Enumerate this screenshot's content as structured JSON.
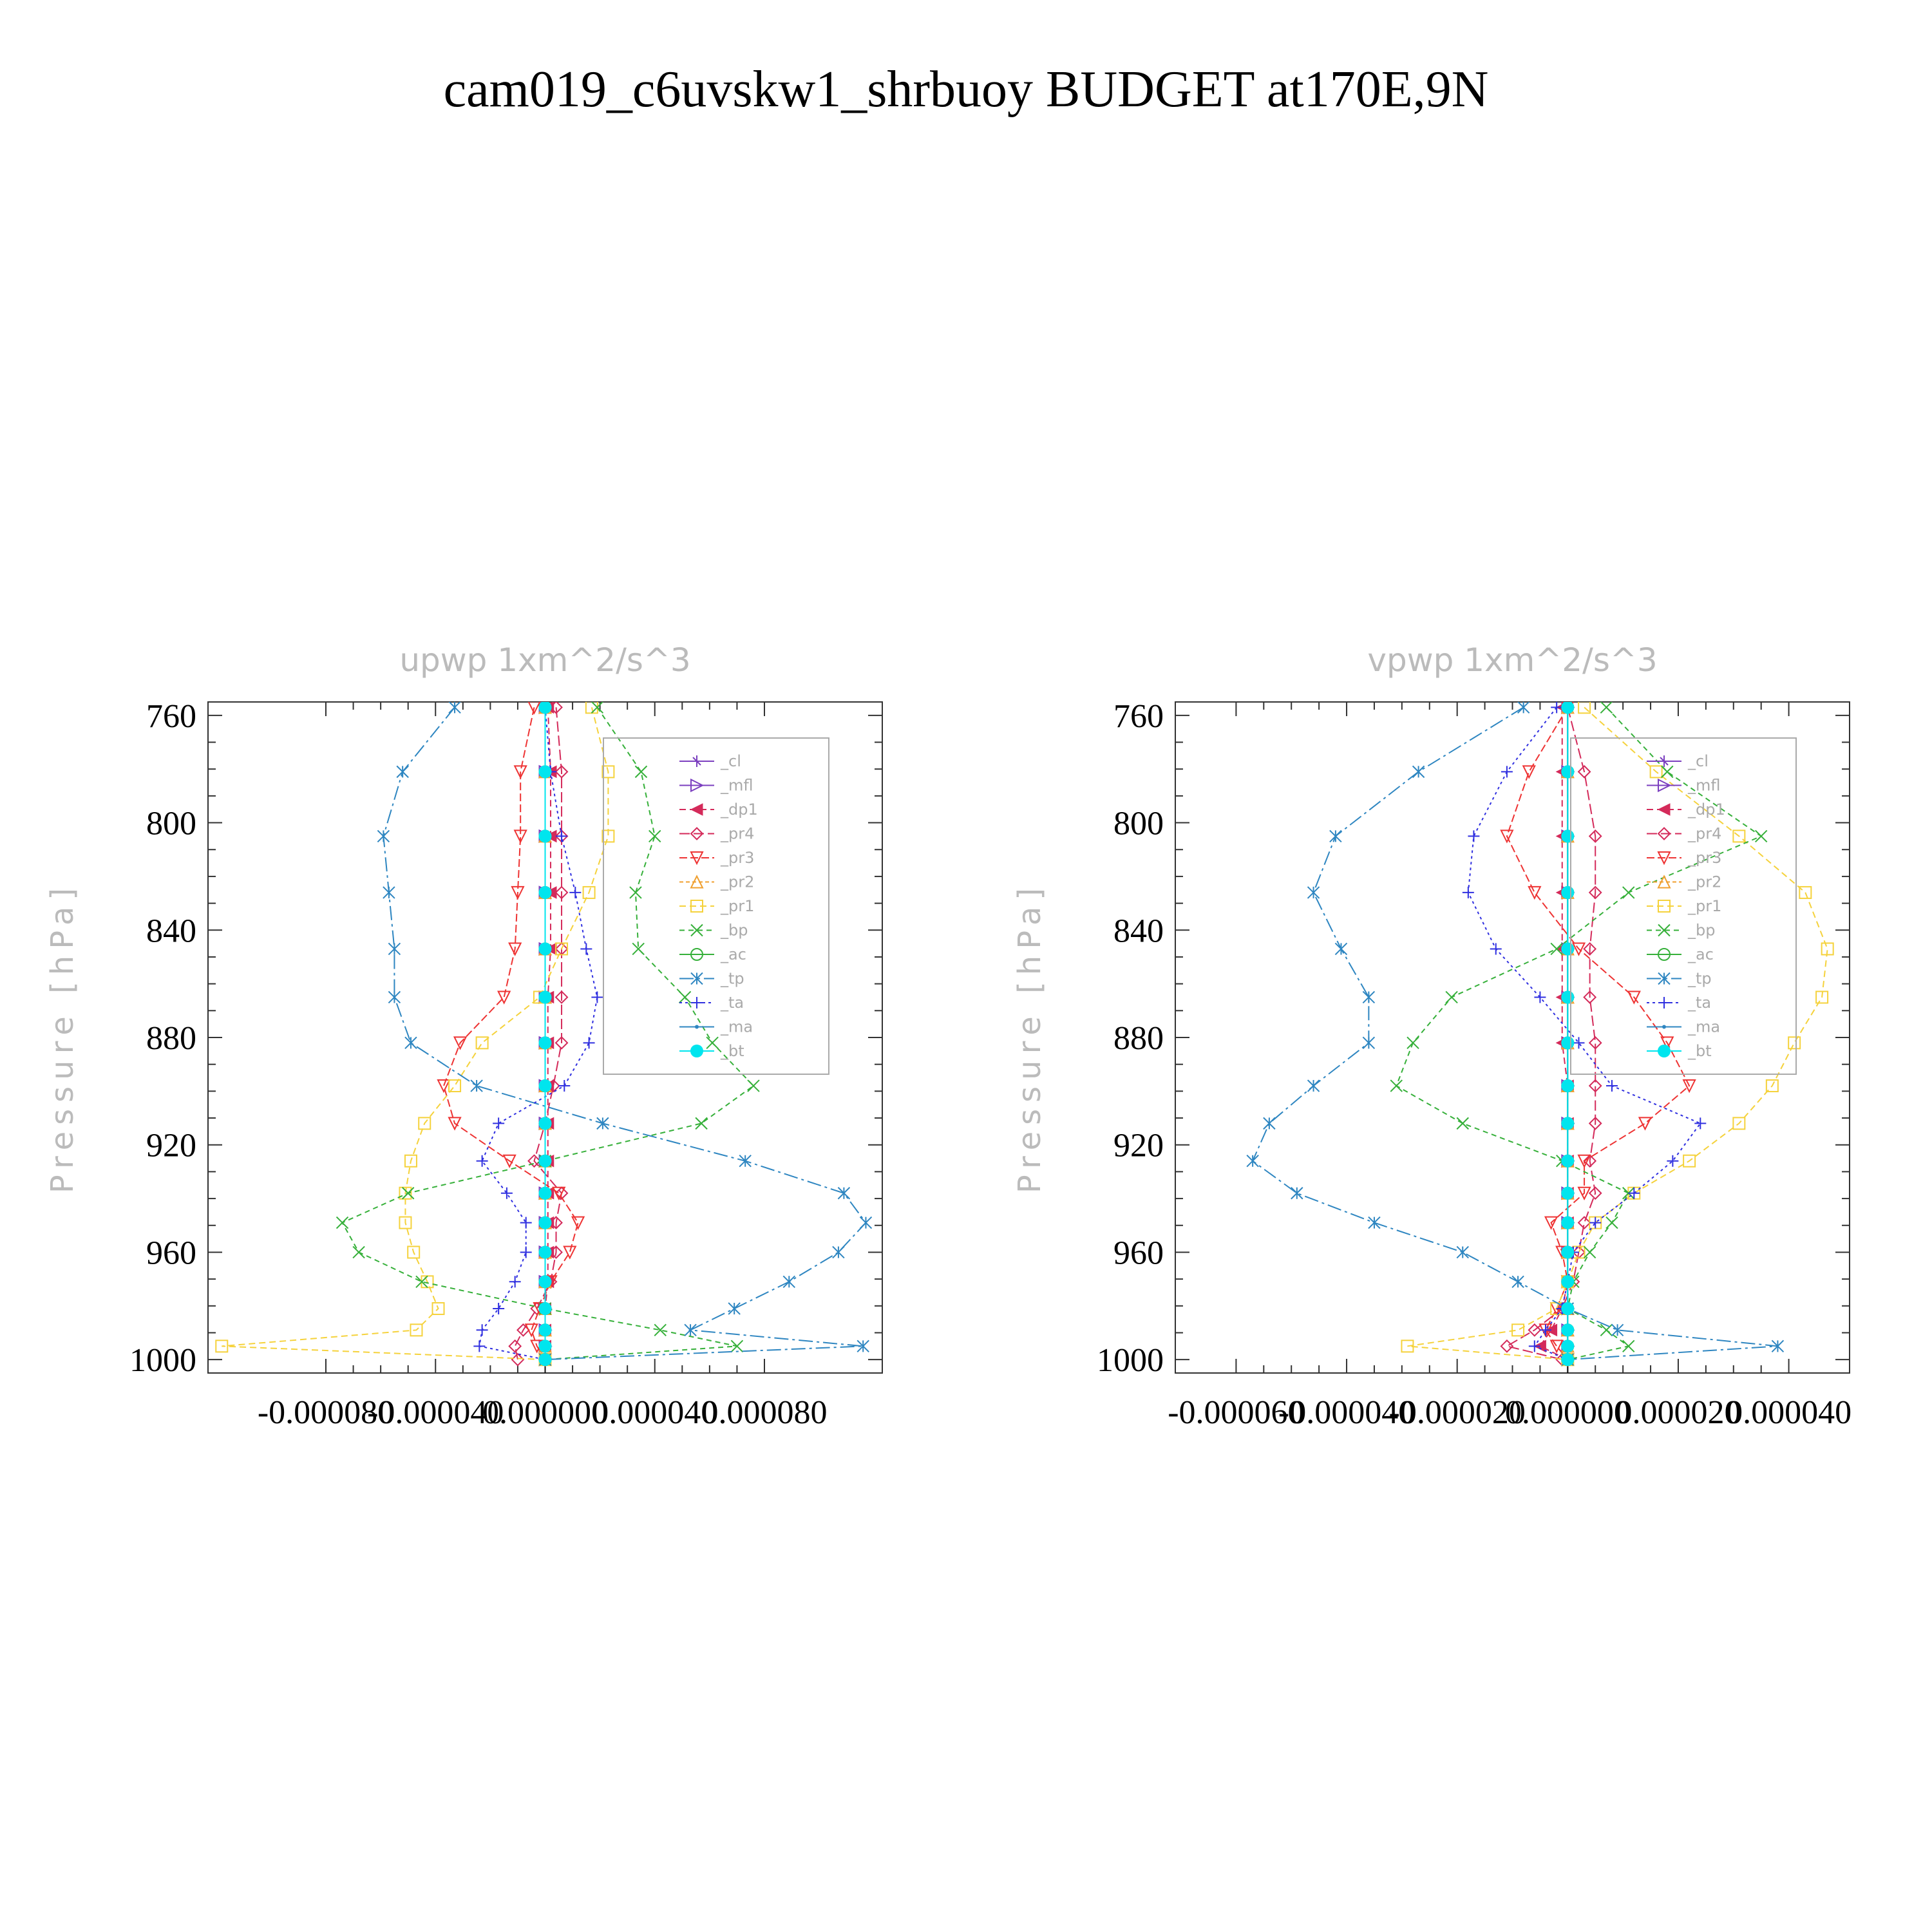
{
  "figure_title": "cam019_c6uvskw1_shrbuoy  BUDGET at170E,9N",
  "chart_data": [
    {
      "type": "line",
      "title": "upwp",
      "units": "1xm^2/s^3",
      "ylabel": "Pressure  [hPa]",
      "ylim": [
        1005,
        755
      ],
      "xlim": [
        -0.000123,
        0.000123
      ],
      "yticks": [
        "760",
        "800",
        "840",
        "880",
        "920",
        "960",
        "1000"
      ],
      "xticks": [
        "-0.000080",
        "-0.000040",
        "0.000000",
        "0.000040",
        "0.000080"
      ],
      "levels": [
        757,
        781,
        805,
        826,
        847,
        865,
        882,
        898,
        912,
        926,
        938,
        949,
        960,
        971,
        981,
        989,
        995,
        1000
      ],
      "series": [
        {
          "name": "_cl",
          "color": "#7b3fbf",
          "marker": "star",
          "dash": "",
          "values": [
            0,
            0,
            0,
            0,
            0,
            0,
            0,
            0,
            0,
            0,
            0,
            0,
            0,
            0,
            0,
            0,
            0,
            0
          ]
        },
        {
          "name": "_mfl",
          "color": "#7b3fbf",
          "marker": "tri-right",
          "dash": "",
          "values": [
            0,
            0,
            0,
            0,
            0,
            0,
            0,
            0,
            0,
            0,
            0,
            0,
            0,
            0,
            0,
            0,
            0,
            0
          ]
        },
        {
          "name": "_dp1",
          "color": "#d42a5a",
          "marker": "tri-left",
          "dash": "10,6",
          "values": [
            1e-06,
            2e-06,
            2e-06,
            2e-06,
            2e-06,
            1e-06,
            1e-06,
            1e-06,
            1e-06,
            1e-06,
            1e-06,
            1e-06,
            1e-06,
            1e-06,
            0,
            0,
            0,
            0
          ]
        },
        {
          "name": "_pr4",
          "color": "#d42a5a",
          "marker": "diamond",
          "dash": "16,6",
          "values": [
            4e-06,
            6e-06,
            6e-06,
            6e-06,
            6e-06,
            6e-06,
            6e-06,
            3e-06,
            0,
            -4e-06,
            6e-06,
            4e-06,
            4e-06,
            2e-06,
            -3e-06,
            -8e-06,
            -1.1e-05,
            -1e-05
          ]
        },
        {
          "name": "_pr3",
          "color": "#ee3333",
          "marker": "tri-down",
          "dash": "12,5",
          "values": [
            -4e-06,
            -9e-06,
            -9e-06,
            -1e-05,
            -1.1e-05,
            -1.5e-05,
            -3.1e-05,
            -3.7e-05,
            -3.3e-05,
            -1.3e-05,
            5e-06,
            1.2e-05,
            9e-06,
            2e-06,
            -2e-06,
            -5e-06,
            -3e-06,
            0
          ]
        },
        {
          "name": "_pr2",
          "color": "#f0a030",
          "marker": "tri-up",
          "dash": "6,4",
          "values": [
            0,
            0,
            0,
            0,
            0,
            0,
            0,
            0,
            0,
            0,
            0,
            0,
            0,
            0,
            0,
            0,
            0,
            0
          ]
        },
        {
          "name": "_pr1",
          "color": "#f5d23c",
          "marker": "square",
          "dash": "10,6",
          "values": [
            1.7e-05,
            2.3e-05,
            2.3e-05,
            1.6e-05,
            6e-06,
            -2e-06,
            -2.3e-05,
            -3.3e-05,
            -4.4e-05,
            -4.9e-05,
            -5.1e-05,
            -5.1e-05,
            -4.8e-05,
            -4.3e-05,
            -3.9e-05,
            -4.7e-05,
            -0.000118,
            0
          ]
        },
        {
          "name": "_bp",
          "color": "#36b03a",
          "marker": "x",
          "dash": "8,6",
          "values": [
            1.9e-05,
            3.5e-05,
            4e-05,
            3.3e-05,
            3.4e-05,
            5.1e-05,
            6.1e-05,
            7.6e-05,
            5.7e-05,
            0,
            -5e-05,
            -7.4e-05,
            -6.8e-05,
            -4.5e-05,
            0,
            4.2e-05,
            7e-05,
            0
          ]
        },
        {
          "name": "_ac",
          "color": "#36b03a",
          "marker": "circle",
          "dash": "",
          "values": [
            0,
            0,
            0,
            0,
            0,
            0,
            0,
            0,
            0,
            0,
            0,
            0,
            0,
            0,
            0,
            0,
            0,
            0
          ]
        },
        {
          "name": "_tp",
          "color": "#2e86c1",
          "marker": "asterisk",
          "dash": "22,6,4,6",
          "values": [
            -3.3e-05,
            -5.2e-05,
            -5.9e-05,
            -5.7e-05,
            -5.5e-05,
            -5.5e-05,
            -4.9e-05,
            -2.5e-05,
            2.1e-05,
            7.3e-05,
            0.000109,
            0.000117,
            0.000107,
            8.9e-05,
            6.9e-05,
            5.3e-05,
            0.000116,
            0
          ]
        },
        {
          "name": "_ta",
          "color": "#3030e0",
          "marker": "plus",
          "dash": "4,5",
          "values": [
            0,
            2e-06,
            6e-06,
            1.1e-05,
            1.5e-05,
            1.9e-05,
            1.6e-05,
            7e-06,
            -1.7e-05,
            -2.3e-05,
            -1.4e-05,
            -7e-06,
            -7e-06,
            -1.1e-05,
            -1.7e-05,
            -2.3e-05,
            -2.4e-05,
            0
          ]
        },
        {
          "name": "_ma",
          "color": "#2e86c1",
          "marker": "dot",
          "dash": "",
          "values": [
            0,
            0,
            0,
            0,
            0,
            0,
            0,
            0,
            0,
            0,
            0,
            0,
            0,
            0,
            0,
            0,
            0,
            0
          ]
        },
        {
          "name": "_bt",
          "color": "#00e5ee",
          "marker": "bigdot",
          "dash": "",
          "values": [
            0,
            0,
            0,
            0,
            0,
            0,
            0,
            0,
            0,
            0,
            0,
            0,
            0,
            0,
            0,
            0,
            0,
            0
          ]
        }
      ],
      "legend": "upper-right"
    },
    {
      "type": "line",
      "title": "vpwp",
      "units": "1xm^2/s^3",
      "ylabel": "Pressure  [hPa]",
      "ylim": [
        1005,
        755
      ],
      "xlim": [
        -7.1e-05,
        5.1e-05
      ],
      "yticks": [
        "760",
        "800",
        "840",
        "880",
        "920",
        "960",
        "1000"
      ],
      "xticks": [
        "-0.000060",
        "-0.000040",
        "-0.000020",
        "0.000000",
        "0.000020",
        "0.000040"
      ],
      "levels": [
        757,
        781,
        805,
        826,
        847,
        865,
        882,
        898,
        912,
        926,
        938,
        949,
        960,
        971,
        981,
        989,
        995,
        1000
      ],
      "series": [
        {
          "name": "_cl",
          "color": "#7b3fbf",
          "marker": "star",
          "dash": "",
          "values": [
            0,
            0,
            0,
            0,
            0,
            0,
            0,
            0,
            0,
            0,
            0,
            0,
            0,
            0,
            0,
            0,
            0,
            0
          ]
        },
        {
          "name": "_mfl",
          "color": "#7b3fbf",
          "marker": "tri-right",
          "dash": "",
          "values": [
            0,
            0,
            0,
            0,
            0,
            0,
            0,
            0,
            0,
            0,
            0,
            0,
            0,
            0,
            0,
            0,
            0,
            0
          ]
        },
        {
          "name": "_dp1",
          "color": "#d42a5a",
          "marker": "tri-left",
          "dash": "10,6",
          "values": [
            -1e-06,
            -1e-06,
            -1e-06,
            -1e-06,
            -1e-06,
            -1e-06,
            -1e-06,
            0,
            0,
            0,
            0,
            0,
            0,
            0,
            -1e-06,
            -3e-06,
            -5e-06,
            0
          ]
        },
        {
          "name": "_pr4",
          "color": "#d42a5a",
          "marker": "diamond",
          "dash": "16,6",
          "values": [
            0,
            3e-06,
            5e-06,
            5e-06,
            4e-06,
            4e-06,
            5e-06,
            5e-06,
            5e-06,
            4e-06,
            5e-06,
            3e-06,
            2e-06,
            1e-06,
            -1e-06,
            -6e-06,
            -1.1e-05,
            -1e-06
          ]
        },
        {
          "name": "_pr3",
          "color": "#ee3333",
          "marker": "tri-down",
          "dash": "12,5",
          "values": [
            0,
            -7e-06,
            -1.1e-05,
            -6e-06,
            2e-06,
            1.2e-05,
            1.8e-05,
            2.2e-05,
            1.4e-05,
            3e-06,
            3e-06,
            -3e-06,
            -1e-06,
            0,
            -2e-06,
            -4e-06,
            -2e-06,
            0
          ]
        },
        {
          "name": "_pr2",
          "color": "#f0a030",
          "marker": "tri-up",
          "dash": "6,4",
          "values": [
            0,
            0,
            0,
            0,
            0,
            0,
            0,
            0,
            0,
            0,
            0,
            0,
            0,
            0,
            0,
            0,
            0,
            0
          ]
        },
        {
          "name": "_pr1",
          "color": "#f5d23c",
          "marker": "square",
          "dash": "10,6",
          "values": [
            3e-06,
            1.6e-05,
            3.1e-05,
            4.3e-05,
            4.7e-05,
            4.6e-05,
            4.1e-05,
            3.7e-05,
            3.1e-05,
            2.2e-05,
            1.2e-05,
            5e-06,
            2e-06,
            0,
            -2e-06,
            -9e-06,
            -2.9e-05,
            0
          ]
        },
        {
          "name": "_bp",
          "color": "#36b03a",
          "marker": "x",
          "dash": "8,6",
          "values": [
            7e-06,
            1.8e-05,
            3.5e-05,
            1.1e-05,
            -2e-06,
            -2.1e-05,
            -2.8e-05,
            -3.1e-05,
            -1.9e-05,
            -1e-06,
            1.1e-05,
            8e-06,
            4e-06,
            1e-06,
            0,
            7e-06,
            1.1e-05,
            0
          ]
        },
        {
          "name": "_ac",
          "color": "#36b03a",
          "marker": "circle",
          "dash": "",
          "values": [
            0,
            0,
            0,
            0,
            0,
            0,
            0,
            0,
            0,
            0,
            0,
            0,
            0,
            0,
            0,
            0,
            0,
            0
          ]
        },
        {
          "name": "_tp",
          "color": "#2e86c1",
          "marker": "asterisk",
          "dash": "22,6,4,6",
          "values": [
            -8e-06,
            -2.7e-05,
            -4.2e-05,
            -4.6e-05,
            -4.1e-05,
            -3.6e-05,
            -3.6e-05,
            -4.6e-05,
            -5.4e-05,
            -5.7e-05,
            -4.9e-05,
            -3.5e-05,
            -1.9e-05,
            -9e-06,
            0,
            9e-06,
            3.8e-05,
            0
          ]
        },
        {
          "name": "_ta",
          "color": "#3030e0",
          "marker": "plus",
          "dash": "4,5",
          "values": [
            -2e-06,
            -1.1e-05,
            -1.7e-05,
            -1.8e-05,
            -1.3e-05,
            -5e-06,
            2e-06,
            8e-06,
            2.4e-05,
            1.9e-05,
            1.2e-05,
            5e-06,
            1e-06,
            0,
            -1e-06,
            -4e-06,
            -6e-06,
            0
          ]
        },
        {
          "name": "_ma",
          "color": "#2e86c1",
          "marker": "dot",
          "dash": "",
          "values": [
            0,
            0,
            0,
            0,
            0,
            0,
            0,
            0,
            0,
            0,
            0,
            0,
            0,
            0,
            0,
            0,
            0,
            0
          ]
        },
        {
          "name": "_bt",
          "color": "#00e5ee",
          "marker": "bigdot",
          "dash": "",
          "values": [
            0,
            0,
            0,
            0,
            0,
            0,
            0,
            0,
            0,
            0,
            0,
            0,
            0,
            0,
            0,
            0,
            0,
            0
          ]
        }
      ],
      "legend": "upper-right"
    }
  ]
}
